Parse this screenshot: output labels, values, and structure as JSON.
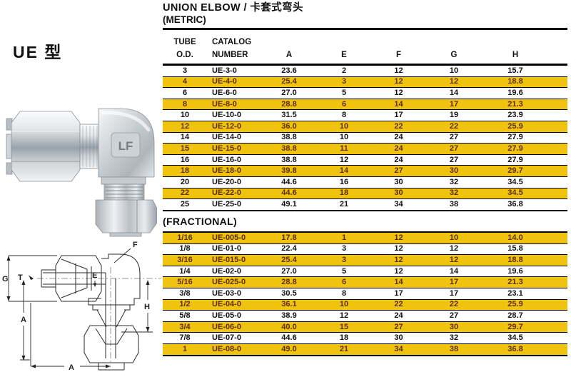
{
  "left": {
    "type_label": "UE 型",
    "photo": {
      "logo": "LF"
    },
    "drawing": {
      "labels": {
        "f": "F",
        "g": "G",
        "t": "T",
        "e": "E",
        "h": "H",
        "a_side": "A",
        "a_bottom": "A"
      }
    }
  },
  "header": {
    "title": "UNION ELBOW / 卡套式弯头",
    "subtitle": "(METRIC)",
    "fractional_label": "(FRACTIONAL)"
  },
  "table": {
    "columns": {
      "tube": [
        "TUBE",
        "O.D."
      ],
      "catalog": [
        "CATALOG",
        "NUMBER"
      ],
      "dims": [
        "A",
        "E",
        "F",
        "G",
        "H"
      ]
    },
    "colors": {
      "highlight_bg": "#F0C30F",
      "highlight_text": "#5c2d08",
      "row_text": "#111111"
    }
  },
  "metric": {
    "rows": [
      {
        "hl": false,
        "cells": [
          "3",
          "UE-3-0",
          "23.6",
          "2",
          "12",
          "10",
          "15.7"
        ]
      },
      {
        "hl": true,
        "cells": [
          "4",
          "UE-4-0",
          "25.4",
          "3",
          "12",
          "12",
          "18.8"
        ]
      },
      {
        "hl": false,
        "cells": [
          "6",
          "UE-6-0",
          "27.0",
          "5",
          "12",
          "14",
          "19.6"
        ]
      },
      {
        "hl": true,
        "cells": [
          "8",
          "UE-8-0",
          "28.8",
          "6",
          "14",
          "17",
          "21.3"
        ]
      },
      {
        "hl": false,
        "cells": [
          "10",
          "UE-10-0",
          "31.5",
          "8",
          "17",
          "19",
          "23.9"
        ]
      },
      {
        "hl": true,
        "cells": [
          "12",
          "UE-12-0",
          "36.0",
          "10",
          "22",
          "22",
          "25.9"
        ]
      },
      {
        "hl": false,
        "cells": [
          "14",
          "UE-14-0",
          "38.8",
          "10",
          "24",
          "27",
          "27.9"
        ]
      },
      {
        "hl": true,
        "cells": [
          "15",
          "UE-15-0",
          "38.8",
          "11",
          "24",
          "27",
          "27.9"
        ]
      },
      {
        "hl": false,
        "cells": [
          "16",
          "UE-16-0",
          "38.8",
          "12",
          "24",
          "27",
          "27.9"
        ]
      },
      {
        "hl": true,
        "cells": [
          "18",
          "UE-18-0",
          "39.8",
          "14",
          "27",
          "30",
          "29.7"
        ]
      },
      {
        "hl": false,
        "cells": [
          "20",
          "UE-20-0",
          "44.6",
          "16",
          "30",
          "32",
          "34.5"
        ]
      },
      {
        "hl": true,
        "cells": [
          "22",
          "UE-22-0",
          "44.6",
          "18",
          "30",
          "32",
          "34.5"
        ]
      },
      {
        "hl": false,
        "cells": [
          "25",
          "UE-25-0",
          "49.1",
          "21",
          "34",
          "38",
          "36.8"
        ]
      }
    ]
  },
  "fractional": {
    "rows": [
      {
        "hl": true,
        "cells": [
          "1/16",
          "UE-005-0",
          "17.8",
          "1",
          "12",
          "10",
          "14.0"
        ]
      },
      {
        "hl": false,
        "cells": [
          "1/8",
          "UE-01-0",
          "22.4",
          "3",
          "12",
          "12",
          "15.8"
        ]
      },
      {
        "hl": true,
        "cells": [
          "3/16",
          "UE-015-0",
          "25.4",
          "3",
          "12",
          "12",
          "18.8"
        ]
      },
      {
        "hl": false,
        "cells": [
          "1/4",
          "UE-02-0",
          "27.0",
          "5",
          "12",
          "14",
          "19.6"
        ]
      },
      {
        "hl": true,
        "cells": [
          "5/16",
          "UE-025-0",
          "28.8",
          "6",
          "14",
          "17",
          "21.3"
        ]
      },
      {
        "hl": false,
        "cells": [
          "3/8",
          "UE-03-0",
          "30.5",
          "8",
          "17",
          "17",
          "23.1"
        ]
      },
      {
        "hl": true,
        "cells": [
          "1/2",
          "UE-04-0",
          "36.1",
          "10",
          "22",
          "22",
          "25.9"
        ]
      },
      {
        "hl": false,
        "cells": [
          "5/8",
          "UE-05-0",
          "38.9",
          "12",
          "24",
          "27",
          "28.7"
        ]
      },
      {
        "hl": true,
        "cells": [
          "3/4",
          "UE-06-0",
          "40.0",
          "15",
          "27",
          "30",
          "29.7"
        ]
      },
      {
        "hl": false,
        "cells": [
          "7/8",
          "UE-07-0",
          "44.6",
          "18",
          "30",
          "32",
          "34.5"
        ]
      },
      {
        "hl": true,
        "cells": [
          "1",
          "UE-08-0",
          "49.0",
          "21",
          "34",
          "38",
          "36.8"
        ]
      }
    ]
  }
}
